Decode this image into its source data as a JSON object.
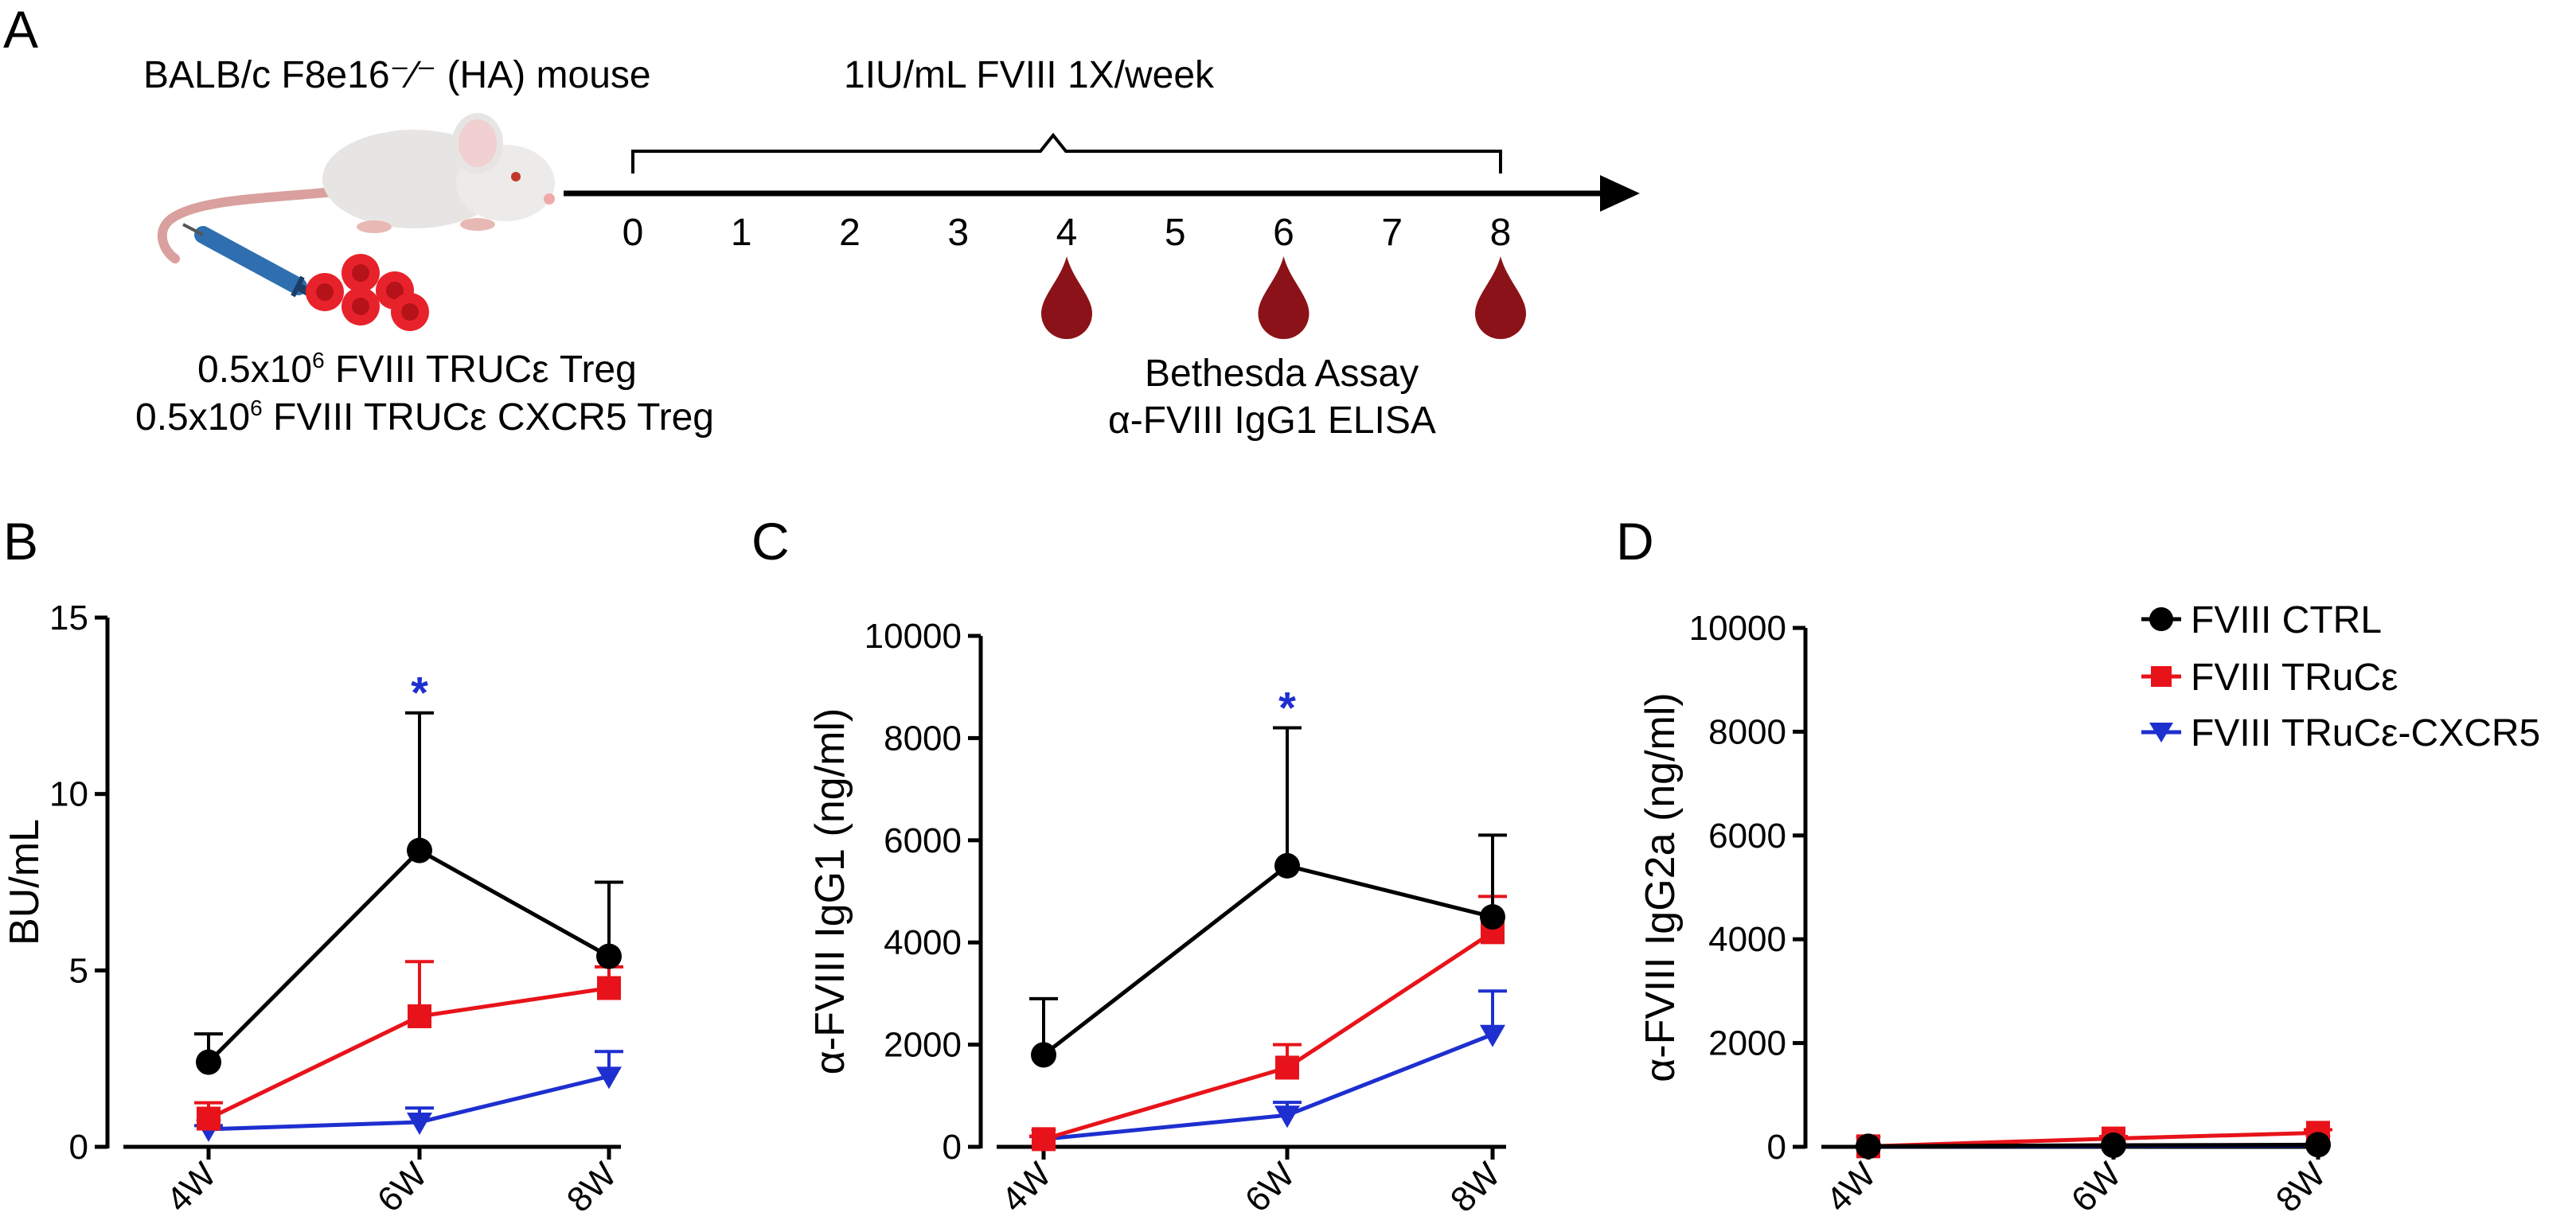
{
  "panel_a": {
    "letter": "A",
    "mouse_label": "BALB/c F8e16⁻⁄⁻ (HA) mouse",
    "treatment_label": "1IU/mL FVIII 1X/week",
    "timeline_ticks": [
      "0",
      "1",
      "2",
      "3",
      "4",
      "5",
      "6",
      "7",
      "8"
    ],
    "blood_draw_weeks": [
      4,
      6,
      8
    ],
    "cells_line1_prefix": "0.5x10",
    "cells_line1_sup": "6",
    "cells_line1_suffix": " FVIII TRUCε Treg",
    "cells_line2_prefix": "0.5x10",
    "cells_line2_sup": "6",
    "cells_line2_suffix": " FVIII TRUCε CXCR5 Treg",
    "assay_line1": "Bethesda Assay",
    "assay_line2": "α-FVIII IgG1 ELISA"
  },
  "legend": {
    "ctrl": "FVIII CTRL",
    "truc": "FVIII TRuCε",
    "cxcr5": "FVIII TRuCε-CXCR5"
  },
  "colors": {
    "ctrl": "#000000",
    "truc": "#e8131a",
    "cxcr5": "#1e2fd0",
    "star": "#1e2fd0"
  },
  "chart_data": [
    {
      "panel": "B",
      "type": "line",
      "ylabel": "BU/mL",
      "categories": [
        "4W",
        "6W",
        "8W"
      ],
      "ylim": [
        0,
        15
      ],
      "yticks": [
        "0",
        "5",
        "10",
        "15"
      ],
      "annotation": "*",
      "annotation_category": "6W",
      "series": [
        {
          "name": "FVIII CTRL",
          "values": [
            2.4,
            8.4,
            5.4
          ],
          "errors": [
            0.8,
            3.9,
            2.1
          ]
        },
        {
          "name": "FVIII TRuCε",
          "values": [
            0.8,
            3.7,
            4.5
          ],
          "errors": [
            0.45,
            1.55,
            0.6
          ]
        },
        {
          "name": "FVIII TRuCε-CXCR5",
          "values": [
            0.5,
            0.7,
            2.0
          ],
          "errors": [
            0.1,
            0.4,
            0.7
          ]
        }
      ]
    },
    {
      "panel": "C",
      "type": "line",
      "ylabel": "α-FVIII IgG1 (ng/ml)",
      "categories": [
        "4W",
        "6W",
        "8W"
      ],
      "ylim": [
        0,
        10000
      ],
      "yticks": [
        "0",
        "2000",
        "4000",
        "6000",
        "8000",
        "10000"
      ],
      "annotation": "*",
      "annotation_category": "6W",
      "series": [
        {
          "name": "FVIII CTRL",
          "values": [
            1800,
            5500,
            4500
          ],
          "errors": [
            1100,
            2700,
            1600
          ]
        },
        {
          "name": "FVIII TRuCε",
          "values": [
            150,
            1550,
            4200
          ],
          "errors": [
            60,
            450,
            700
          ]
        },
        {
          "name": "FVIII TRuCε-CXCR5",
          "values": [
            150,
            620,
            2200
          ],
          "errors": [
            50,
            250,
            850
          ]
        }
      ]
    },
    {
      "panel": "D",
      "type": "line",
      "ylabel": "α-FVIII IgG2a (ng/ml)",
      "categories": [
        "4W",
        "6W",
        "8W"
      ],
      "ylim": [
        0,
        10000
      ],
      "yticks": [
        "0",
        "2000",
        "4000",
        "6000",
        "8000",
        "10000"
      ],
      "series": [
        {
          "name": "FVIII CTRL",
          "values": [
            10,
            30,
            40
          ],
          "errors": [
            0,
            0,
            0
          ]
        },
        {
          "name": "FVIII TRuCε",
          "values": [
            10,
            160,
            270
          ],
          "errors": [
            0,
            40,
            60
          ]
        },
        {
          "name": "FVIII TRuCε-CXCR5",
          "values": [
            10,
            20,
            30
          ],
          "errors": [
            0,
            0,
            0
          ]
        }
      ]
    }
  ]
}
